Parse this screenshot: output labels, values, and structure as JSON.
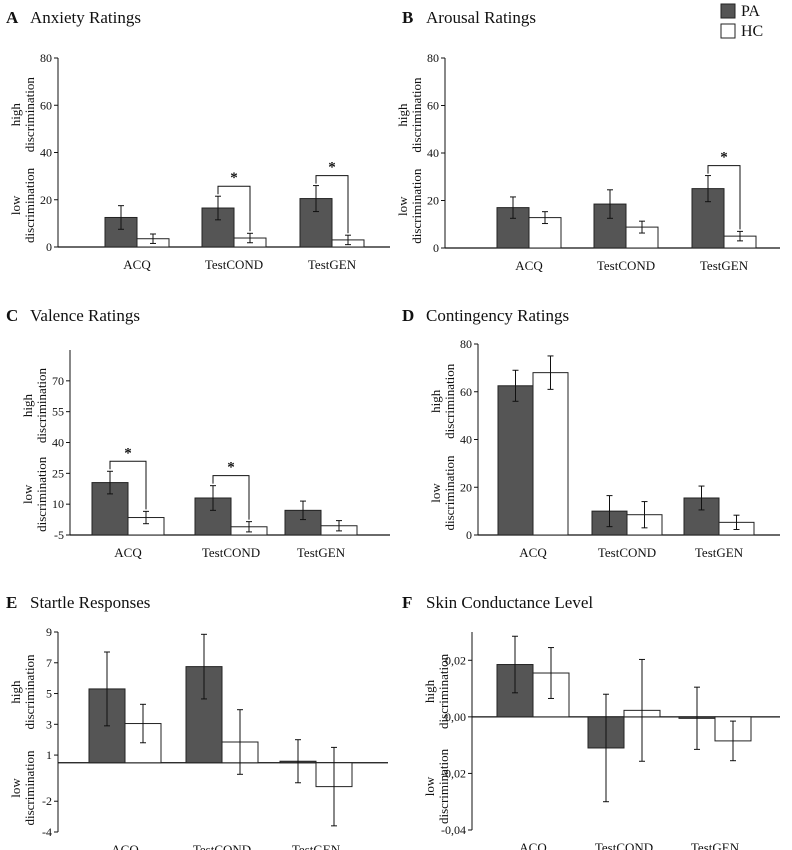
{
  "legend": {
    "series": [
      {
        "name": "PA",
        "color": "#555555"
      },
      {
        "name": "HC",
        "color": "#ffffff"
      }
    ]
  },
  "chart_data": [
    {
      "letter": "A",
      "title": "Anxiety Ratings",
      "type": "bar",
      "categories": [
        "ACQ",
        "TestCOND",
        "TestGEN"
      ],
      "ylim": [
        0,
        80
      ],
      "yticks": [
        "0",
        "20",
        "40",
        "60",
        "80"
      ],
      "ytick_values": [
        0,
        20,
        40,
        60,
        80
      ],
      "ylabel_high": [
        "high",
        "discrimination"
      ],
      "ylabel_low": [
        "low",
        "discrimination"
      ],
      "series": [
        {
          "name": "PA",
          "values": [
            12.5,
            16.5,
            20.5
          ],
          "errors": [
            5,
            5,
            5.5
          ]
        },
        {
          "name": "HC",
          "values": [
            3.5,
            3.8,
            3
          ],
          "errors": [
            2,
            2,
            2
          ]
        }
      ],
      "significance": [
        {
          "category": 1,
          "label": "*"
        },
        {
          "category": 2,
          "label": "*"
        }
      ]
    },
    {
      "letter": "B",
      "title": "Arousal Ratings",
      "type": "bar",
      "categories": [
        "ACQ",
        "TestCOND",
        "TestGEN"
      ],
      "ylim": [
        0,
        80
      ],
      "yticks": [
        "0",
        "20",
        "40",
        "60",
        "80"
      ],
      "ytick_values": [
        0,
        20,
        40,
        60,
        80
      ],
      "ylabel_high": [
        "high",
        "discrimination"
      ],
      "ylabel_low": [
        "low",
        "discrimination"
      ],
      "series": [
        {
          "name": "PA",
          "values": [
            17,
            18.5,
            25
          ],
          "errors": [
            4.5,
            6,
            5.5
          ]
        },
        {
          "name": "HC",
          "values": [
            12.8,
            8.8,
            5
          ],
          "errors": [
            2.5,
            2.5,
            2
          ]
        }
      ],
      "significance": [
        {
          "category": 2,
          "label": "*"
        }
      ]
    },
    {
      "letter": "C",
      "title": "Valence Ratings",
      "type": "bar",
      "categories": [
        "ACQ",
        "TestCOND",
        "TestGEN"
      ],
      "ylim": [
        -5,
        85
      ],
      "yticks": [
        "-5",
        "10",
        "25",
        "40",
        "55",
        "70"
      ],
      "ytick_values": [
        -5,
        10,
        25,
        40,
        55,
        70
      ],
      "ylabel_high": [
        "high",
        "discrimination"
      ],
      "ylabel_low": [
        "low",
        "discrimination"
      ],
      "series": [
        {
          "name": "PA",
          "values": [
            20.5,
            13,
            7
          ],
          "errors": [
            5.5,
            6,
            4.5
          ]
        },
        {
          "name": "HC",
          "values": [
            3.5,
            -1,
            -0.5
          ],
          "errors": [
            3,
            2.5,
            2.5
          ]
        }
      ],
      "significance": [
        {
          "category": 0,
          "label": "*"
        },
        {
          "category": 1,
          "label": "*"
        }
      ]
    },
    {
      "letter": "D",
      "title": "Contingency Ratings",
      "type": "bar",
      "categories": [
        "ACQ",
        "TestCOND",
        "TestGEN"
      ],
      "ylim": [
        0,
        80
      ],
      "yticks": [
        "0",
        "20",
        "40",
        "60",
        "80"
      ],
      "ytick_values": [
        0,
        20,
        40,
        60,
        80
      ],
      "ylabel_high": [
        "high",
        "discrimination"
      ],
      "ylabel_low": [
        "low",
        "discrimination"
      ],
      "series": [
        {
          "name": "PA",
          "values": [
            62.5,
            10,
            15.5
          ],
          "errors": [
            6.5,
            6.5,
            5
          ]
        },
        {
          "name": "HC",
          "values": [
            68,
            8.5,
            5.3
          ],
          "errors": [
            7,
            5.5,
            3
          ]
        }
      ],
      "significance": []
    },
    {
      "letter": "E",
      "title": "Startle Responses",
      "type": "bar",
      "categories": [
        "ACQ",
        "TestCOND",
        "TestGEN"
      ],
      "ylim": [
        -4,
        9
      ],
      "baseline": 0.5,
      "yticks": [
        "-4",
        "-2",
        "1",
        "3",
        "5",
        "7",
        "9"
      ],
      "ytick_values": [
        -4,
        -2,
        1,
        3,
        5,
        7,
        9
      ],
      "ylabel_high": [
        "high",
        "discrimination"
      ],
      "ylabel_low": [
        "low",
        "discrimination"
      ],
      "series": [
        {
          "name": "PA",
          "values": [
            5.3,
            6.75,
            0.6
          ],
          "errors": [
            2.4,
            2.1,
            1.4
          ]
        },
        {
          "name": "HC",
          "values": [
            3.05,
            1.85,
            -1.05
          ],
          "errors": [
            1.25,
            2.1,
            2.55
          ]
        }
      ],
      "significance": []
    },
    {
      "letter": "F",
      "title": "Skin Conductance Level",
      "type": "bar",
      "categories": [
        "ACQ",
        "TestCOND",
        "TestGEN"
      ],
      "ylim": [
        -0.04,
        0.03
      ],
      "baseline": 0,
      "yticks": [
        "-0,04",
        "-0,02",
        "0,00",
        "0,02"
      ],
      "ytick_values": [
        -0.04,
        -0.02,
        0,
        0.02
      ],
      "ylabel_high": [
        "high",
        "discrimination"
      ],
      "ylabel_low": [
        "low",
        "discrimination"
      ],
      "series": [
        {
          "name": "PA",
          "values": [
            0.0185,
            -0.011,
            -0.0005
          ],
          "errors": [
            0.01,
            0.019,
            0.011
          ]
        },
        {
          "name": "HC",
          "values": [
            0.0155,
            0.0023,
            -0.0085
          ],
          "errors": [
            0.009,
            0.018,
            0.007
          ]
        }
      ],
      "significance": []
    }
  ]
}
